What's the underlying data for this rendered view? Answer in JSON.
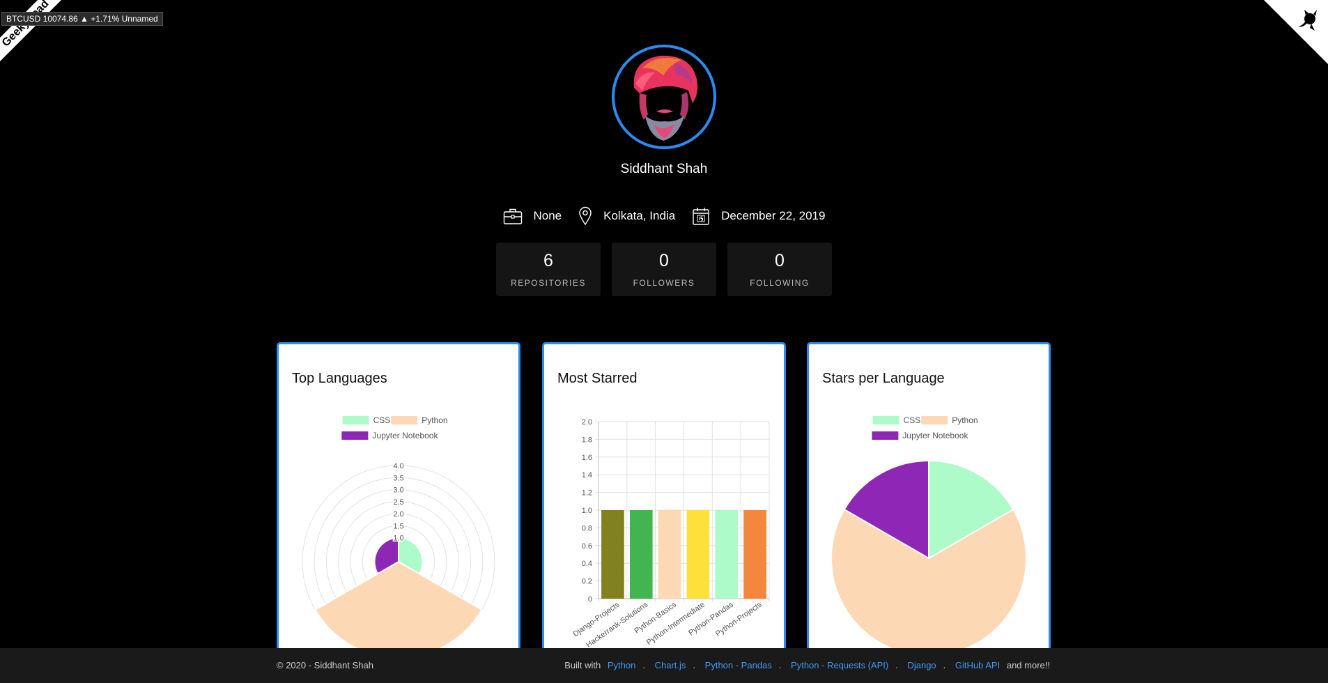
{
  "ticker": "BTCUSD 10074.86 ▲ +1.71% Unnamed",
  "ribbon": "GeekyHead",
  "profile": {
    "name": "Siddhant Shah",
    "company": "None",
    "location": "Kolkata, India",
    "joined": "December 22, 2019"
  },
  "stats": [
    {
      "value": "6",
      "label": "REPOSITORIES"
    },
    {
      "value": "0",
      "label": "FOLLOWERS"
    },
    {
      "value": "0",
      "label": "FOLLOWING"
    }
  ],
  "cards": {
    "top_languages": "Top Languages",
    "most_starred": "Most Starred",
    "stars_per_language": "Stars per Language"
  },
  "chart_data": [
    {
      "type": "polarArea",
      "title": "Top Languages",
      "legend": [
        "CSS",
        "Python",
        "Jupyter Notebook"
      ],
      "values": [
        1,
        4,
        1
      ],
      "colors": [
        "#adfbc8",
        "#fdd8b5",
        "#8e27b5"
      ],
      "rlim": [
        0,
        4
      ],
      "ticks": [
        "4.0",
        "3.5",
        "3.0",
        "2.5",
        "2.0",
        "1.5",
        "1.0"
      ],
      "legend_position": "top"
    },
    {
      "type": "bar",
      "title": "Most Starred",
      "categories": [
        "Django-Projects",
        "Hackerrank-Solutions",
        "Python-Basics",
        "Python-Intermediate",
        "Python-Pandas",
        "Python-Projects"
      ],
      "values": [
        1,
        1,
        1,
        1,
        1,
        1
      ],
      "colors": [
        "#81811f",
        "#43b550",
        "#fdd8b5",
        "#fde03c",
        "#adfbc8",
        "#f5863e"
      ],
      "ylim": [
        0,
        2
      ],
      "yticks": [
        "0",
        "0.2",
        "0.4",
        "0.6",
        "0.8",
        "1.0",
        "1.2",
        "1.4",
        "1.6",
        "1.8",
        "2.0"
      ],
      "grid": true
    },
    {
      "type": "pie",
      "title": "Stars per Language",
      "legend": [
        "CSS",
        "Python",
        "Jupyter Notebook"
      ],
      "values": [
        1,
        4,
        1
      ],
      "colors": [
        "#adfbc8",
        "#fdd8b5",
        "#8e27b5"
      ],
      "legend_position": "top"
    }
  ],
  "footer": {
    "copyright": "© 2020 - Siddhant Shah",
    "built_with": "Built with",
    "links": [
      "Python",
      "Chart.js",
      "Python - Pandas",
      "Python - Requests (API)",
      "Django",
      "GitHub API"
    ],
    "more": "and more!!"
  }
}
